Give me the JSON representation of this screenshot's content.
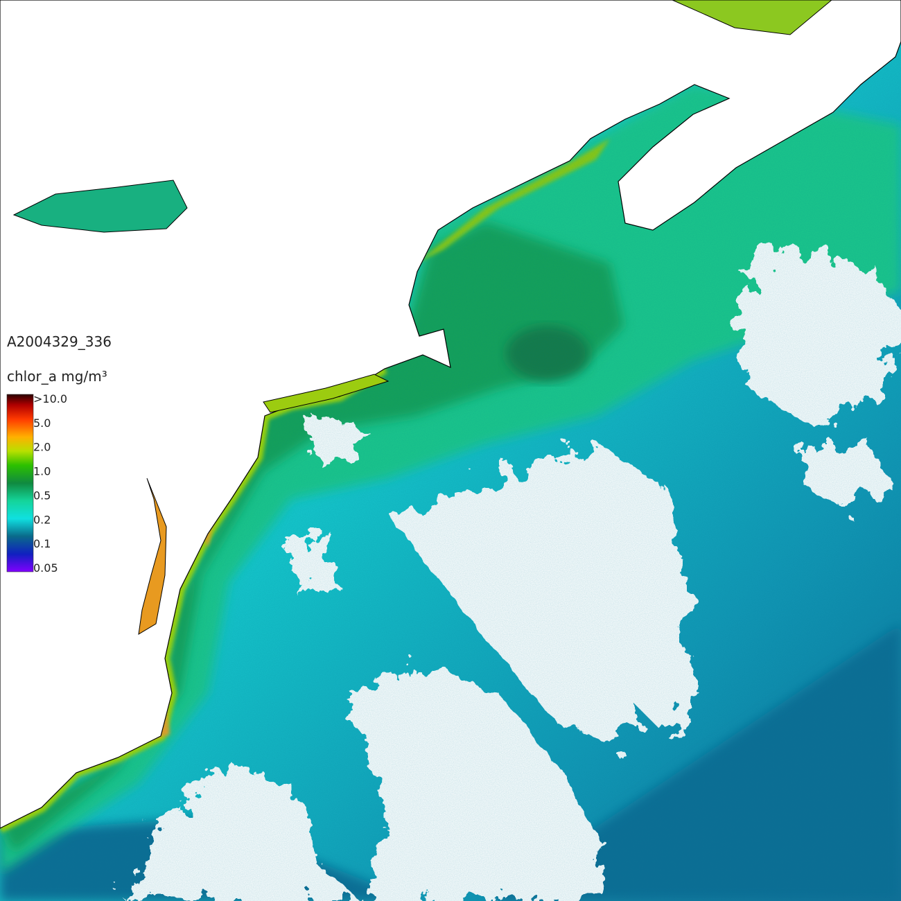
{
  "image_label": "A2004329_336",
  "colorbar": {
    "title": "chlor_a mg/m³",
    "labels": [
      ">10.0",
      "5.0",
      "2.0",
      "1.0",
      "0.5",
      "0.2",
      "0.1",
      "0.05"
    ]
  }
}
